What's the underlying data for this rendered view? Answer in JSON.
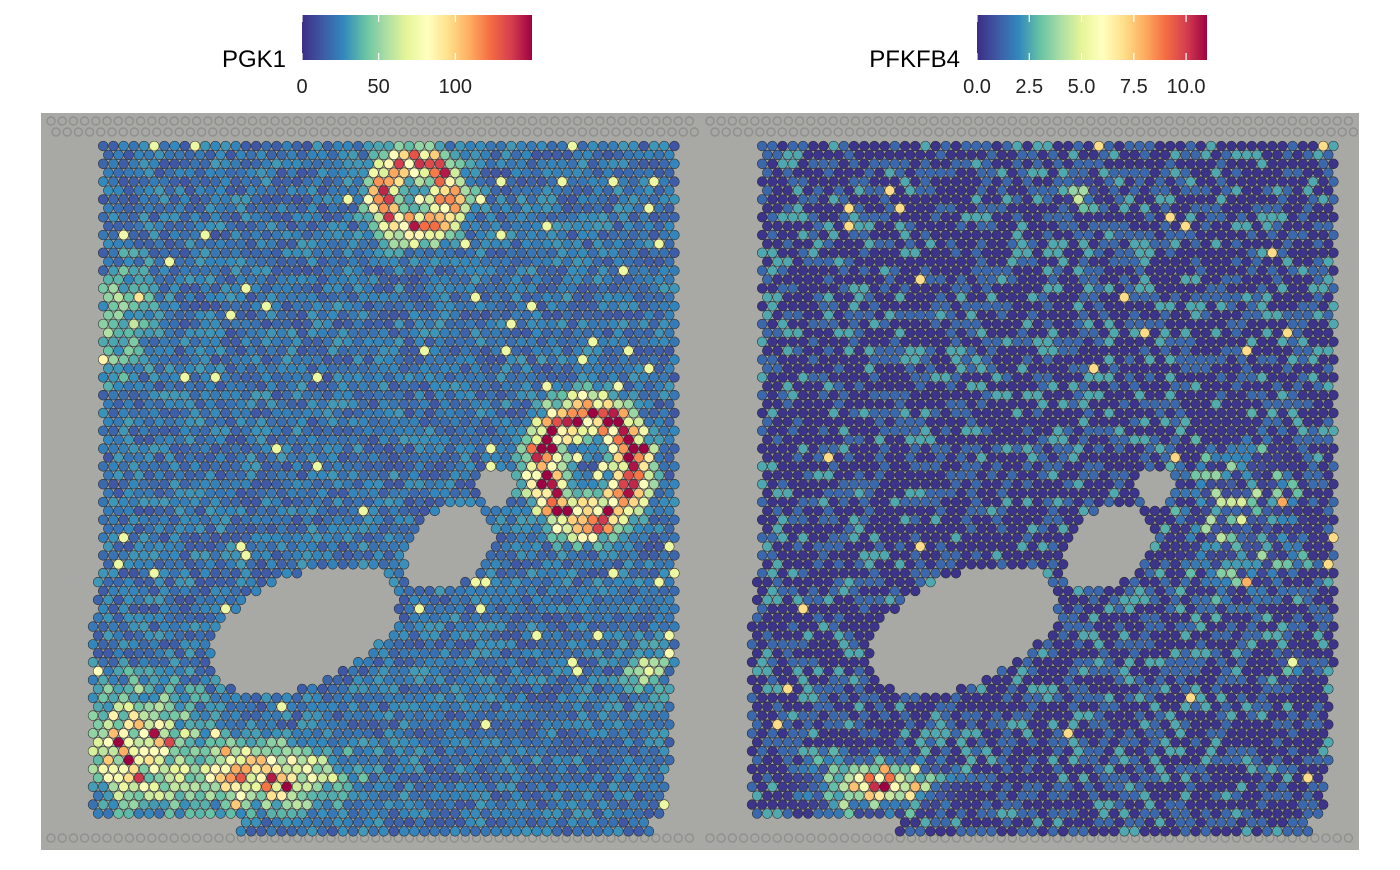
{
  "colormap": [
    "#3c2d85",
    "#3f5aa6",
    "#3288bd",
    "#66c2a5",
    "#abdda4",
    "#e6f598",
    "#ffffbf",
    "#fee08b",
    "#fdae61",
    "#f46d43",
    "#d53e4f",
    "#9e0142"
  ],
  "tissue_background": "#a8a8a4",
  "chart_data": [
    {
      "type": "heatmap",
      "title": "PGK1",
      "legend_title": "PGK1",
      "legend_placement": "top",
      "legend_ticks": [
        0,
        50,
        100
      ],
      "legend_tick_labels": [
        "0",
        "50",
        "100"
      ],
      "color_range": [
        0,
        150
      ],
      "baseline_expression": 22,
      "hotspots": [
        {
          "region": "upper-center ring",
          "peak": 105
        },
        {
          "region": "right ring",
          "peak": 150
        },
        {
          "region": "left edge",
          "peak": 55
        },
        {
          "region": "lower-left band",
          "peak": 110
        },
        {
          "region": "bottom-center band",
          "peak": 120
        },
        {
          "region": "right margin spot",
          "peak": 75
        }
      ]
    },
    {
      "type": "heatmap",
      "title": "PFKFB4",
      "legend_title": "PFKFB4",
      "legend_placement": "top",
      "legend_ticks": [
        0,
        2.5,
        5,
        7.5,
        10
      ],
      "legend_tick_labels": [
        "0.0",
        "2.5",
        "5.0",
        "7.5",
        "10.0"
      ],
      "color_range": [
        0,
        11
      ],
      "baseline_expression": 0.8,
      "hotspots": [
        {
          "region": "bottom-center band",
          "peak": 11
        },
        {
          "region": "upper-center spot",
          "peak": 6
        },
        {
          "region": "right margin spot",
          "peak": 6
        }
      ]
    }
  ]
}
